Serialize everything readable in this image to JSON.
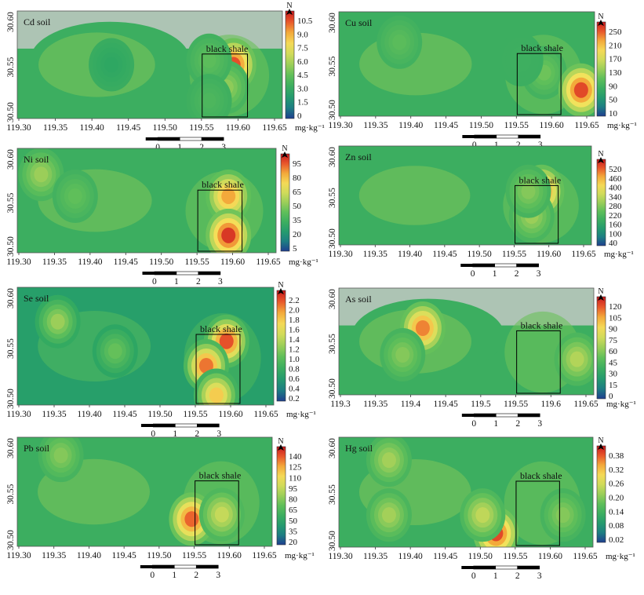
{
  "figure": {
    "unit_label": "mg·kg⁻¹",
    "north_label": "N",
    "roi_label": "black shale",
    "scale_ticks": [
      "0",
      "1",
      "2",
      "3"
    ]
  },
  "chart_data": [
    {
      "type": "heatmap",
      "title": "Cd soil",
      "x_ticks": [
        "119.30",
        "119.35",
        "119.40",
        "119.45",
        "119.50",
        "119.55",
        "119.60",
        "119.65"
      ],
      "y_ticks": [
        "30.50",
        "30.55",
        "30.60"
      ],
      "legend_ticks": [
        "10.5",
        "9.0",
        "7.5",
        "6.0",
        "4.5",
        "3.0",
        "1.5",
        "0"
      ],
      "legend_range": [
        0,
        11.5
      ],
      "hotspots": [
        {
          "lon": 119.595,
          "lat": 30.545,
          "value": 10.5
        },
        {
          "lon": 119.585,
          "lat": 30.52,
          "value": 5.5
        },
        {
          "lon": 119.56,
          "lat": 30.55,
          "value": 4.5
        },
        {
          "lon": 119.42,
          "lat": 30.545,
          "value": 3.0
        },
        {
          "lon": 119.56,
          "lat": 30.505,
          "value": 4.0
        }
      ],
      "no_data_color": "#c9c9c9"
    },
    {
      "type": "heatmap",
      "title": "Cu soil",
      "x_ticks": [
        "119.30",
        "119.35",
        "119.40",
        "119.45",
        "119.50",
        "119.55",
        "119.60",
        "119.65"
      ],
      "y_ticks": [
        "30.50",
        "30.55",
        "30.60"
      ],
      "legend_ticks": [
        "250",
        "210",
        "170",
        "130",
        "90",
        "50",
        "10"
      ],
      "legend_range": [
        10,
        270
      ],
      "hotspots": [
        {
          "lon": 119.59,
          "lat": 30.535,
          "value": 120
        },
        {
          "lon": 119.645,
          "lat": 30.515,
          "value": 250
        },
        {
          "lon": 119.375,
          "lat": 30.57,
          "value": 110
        },
        {
          "lon": 119.555,
          "lat": 30.55,
          "value": 90
        }
      ]
    },
    {
      "type": "heatmap",
      "title": "Ni soil",
      "x_ticks": [
        "119.30",
        "119.35",
        "119.40",
        "119.45",
        "119.50",
        "119.55",
        "119.60",
        "119.65"
      ],
      "y_ticks": [
        "30.50",
        "30.55",
        "30.60"
      ],
      "legend_ticks": [
        "95",
        "80",
        "65",
        "50",
        "35",
        "20",
        "5"
      ],
      "legend_range": [
        5,
        105
      ],
      "hotspots": [
        {
          "lon": 119.595,
          "lat": 30.55,
          "value": 85
        },
        {
          "lon": 119.595,
          "lat": 30.505,
          "value": 100
        },
        {
          "lon": 119.32,
          "lat": 30.575,
          "value": 55
        },
        {
          "lon": 119.37,
          "lat": 30.55,
          "value": 45
        }
      ]
    },
    {
      "type": "heatmap",
      "title": "Zn soil",
      "x_ticks": [
        "119.30",
        "119.35",
        "119.40",
        "119.45",
        "119.50",
        "119.55",
        "119.60",
        "119.65"
      ],
      "y_ticks": [
        "30.50",
        "30.55",
        "30.60"
      ],
      "legend_ticks": [
        "520",
        "460",
        "400",
        "340",
        "280",
        "220",
        "160",
        "100",
        "40"
      ],
      "legend_range": [
        40,
        560
      ],
      "hotspots": [
        {
          "lon": 119.59,
          "lat": 30.55,
          "value": 480
        },
        {
          "lon": 119.575,
          "lat": 30.52,
          "value": 300
        },
        {
          "lon": 119.57,
          "lat": 30.55,
          "value": 280
        }
      ]
    },
    {
      "type": "heatmap",
      "title": "Se soil",
      "x_ticks": [
        "119.30",
        "119.35",
        "119.40",
        "119.45",
        "119.50",
        "119.55",
        "119.60",
        "119.65"
      ],
      "y_ticks": [
        "30.50",
        "30.55",
        "30.60"
      ],
      "legend_ticks": [
        "2.2",
        "2.0",
        "1.8",
        "1.6",
        "1.4",
        "1.2",
        "1.0",
        "0.8",
        "0.6",
        "0.4",
        "0.2"
      ],
      "legend_range": [
        0.1,
        2.3
      ],
      "hotspots": [
        {
          "lon": 119.595,
          "lat": 30.55,
          "value": 2.1
        },
        {
          "lon": 119.565,
          "lat": 30.525,
          "value": 2.0
        },
        {
          "lon": 119.58,
          "lat": 30.495,
          "value": 1.7
        },
        {
          "lon": 119.345,
          "lat": 30.57,
          "value": 1.2
        },
        {
          "lon": 119.43,
          "lat": 30.54,
          "value": 1.0
        }
      ]
    },
    {
      "type": "heatmap",
      "title": "As soil",
      "x_ticks": [
        "119.3",
        "119.35",
        "119.4",
        "119.45",
        "119.5",
        "119.55",
        "119.6",
        "119.65"
      ],
      "y_ticks": [
        "30.50",
        "30.55",
        "30.60"
      ],
      "legend_ticks": [
        "120",
        "105",
        "90",
        "75",
        "60",
        "45",
        "30",
        "15",
        "0"
      ],
      "legend_range": [
        0,
        130
      ],
      "hotspots": [
        {
          "lon": 119.41,
          "lat": 30.56,
          "value": 110
        },
        {
          "lon": 119.38,
          "lat": 30.53,
          "value": 60
        },
        {
          "lon": 119.64,
          "lat": 30.525,
          "value": 70
        }
      ],
      "no_data_color": "#c9c9c9"
    },
    {
      "type": "heatmap",
      "title": "Pb soil",
      "x_ticks": [
        "119.30",
        "119.35",
        "119.40",
        "119.45",
        "119.50",
        "119.55",
        "119.60",
        "119.65"
      ],
      "y_ticks": [
        "30.50",
        "30.55",
        "30.60"
      ],
      "legend_ticks": [
        "140",
        "125",
        "110",
        "95",
        "80",
        "65",
        "50",
        "35",
        "20"
      ],
      "legend_range": [
        20,
        150
      ],
      "hotspots": [
        {
          "lon": 119.545,
          "lat": 30.515,
          "value": 135
        },
        {
          "lon": 119.59,
          "lat": 30.52,
          "value": 95
        },
        {
          "lon": 119.35,
          "lat": 30.585,
          "value": 80
        }
      ]
    },
    {
      "type": "heatmap",
      "title": "Hg soil",
      "x_ticks": [
        "119.30",
        "119.35",
        "119.40",
        "119.45",
        "119.50",
        "119.55",
        "119.60",
        "119.65"
      ],
      "y_ticks": [
        "30.50",
        "30.55",
        "30.60"
      ],
      "legend_ticks": [
        "0.38",
        "0.32",
        "0.26",
        "0.20",
        "0.14",
        "0.08",
        "0.02"
      ],
      "legend_range": [
        0.02,
        0.41
      ],
      "hotspots": [
        {
          "lon": 119.52,
          "lat": 30.5,
          "value": 0.38
        },
        {
          "lon": 119.36,
          "lat": 30.58,
          "value": 0.22
        },
        {
          "lon": 119.36,
          "lat": 30.52,
          "value": 0.22
        },
        {
          "lon": 119.5,
          "lat": 30.52,
          "value": 0.24
        },
        {
          "lon": 119.62,
          "lat": 30.52,
          "value": 0.2
        }
      ]
    }
  ]
}
